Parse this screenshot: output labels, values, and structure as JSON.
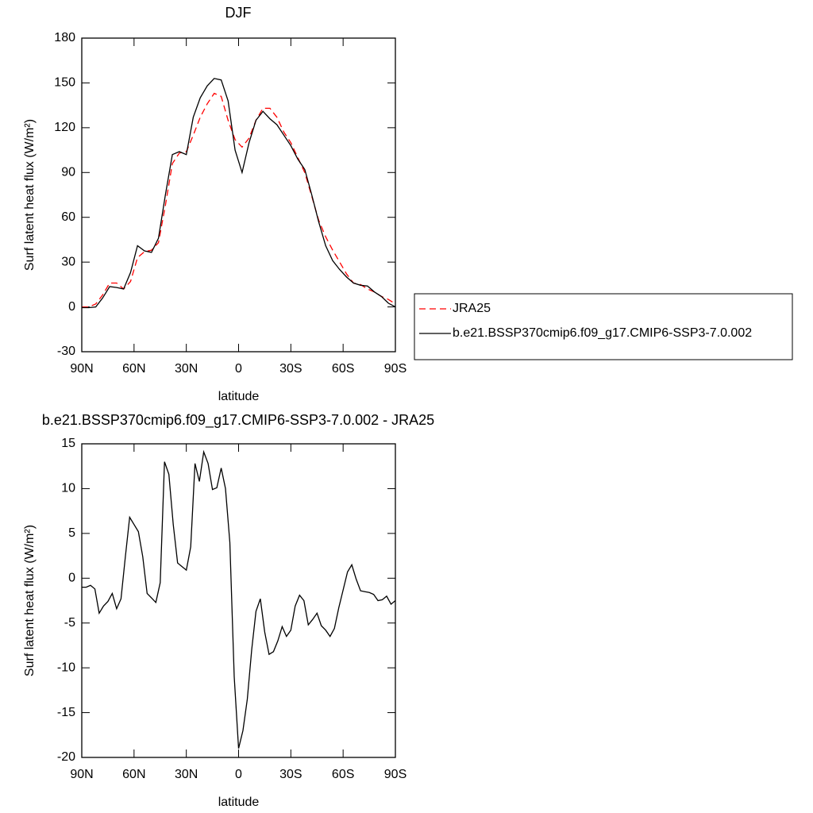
{
  "chart_data": [
    {
      "type": "line",
      "title": "DJF",
      "xlabel": "latitude",
      "ylabel": "Surf latent heat flux (W/m²)",
      "x": [
        90,
        86,
        82,
        78,
        74,
        70,
        66,
        62,
        58,
        54,
        50,
        46,
        42,
        38,
        34,
        30,
        26,
        22,
        18,
        14,
        10,
        6,
        2,
        -2,
        -6,
        -10,
        -14,
        -18,
        -22,
        -26,
        -30,
        -34,
        -38,
        -42,
        -46,
        -50,
        -54,
        -58,
        -62,
        -66,
        -70,
        -74,
        -78,
        -82,
        -86,
        -90
      ],
      "series": [
        {
          "name": "JRA25",
          "color": "#ff0000",
          "linestyle": "dashed",
          "values": [
            0,
            0,
            2,
            8,
            16,
            16,
            12,
            17,
            33,
            37,
            38,
            43,
            68,
            96,
            103,
            104,
            115,
            127,
            136,
            143,
            141,
            125,
            112,
            107,
            113,
            125,
            133,
            133,
            127,
            117,
            110,
            100,
            90,
            74,
            58,
            47,
            38,
            30,
            22,
            16,
            15,
            12,
            10,
            7,
            5,
            2
          ]
        },
        {
          "name": "b.e21.BSSP370cmip6.f09_g17.CMIP6-SSP3-7.0.002",
          "color": "#000000",
          "linestyle": "solid",
          "values": [
            -0.5,
            -0.5,
            0,
            6,
            13.6,
            13,
            12,
            23,
            41,
            37.5,
            36.5,
            46,
            75,
            102,
            104,
            102,
            127,
            140,
            148,
            153,
            152,
            138,
            105,
            90,
            110,
            125,
            131,
            126,
            122,
            115,
            108,
            99,
            92,
            75,
            57,
            41,
            31,
            25,
            20,
            16,
            14.5,
            14,
            10,
            7,
            2.5,
            0
          ]
        }
      ],
      "xlim": [
        90,
        -90
      ],
      "xticks": [
        {
          "value": 90,
          "label": "90N"
        },
        {
          "value": 60,
          "label": "60N"
        },
        {
          "value": 30,
          "label": "30N"
        },
        0,
        {
          "value": -30,
          "label": "30S"
        },
        {
          "value": -60,
          "label": "60S"
        },
        {
          "value": -90,
          "label": "90S"
        }
      ],
      "ylim": [
        -30,
        180
      ],
      "yticks": [
        -30,
        0,
        30,
        60,
        90,
        120,
        150,
        180
      ],
      "legend": "right"
    },
    {
      "type": "line",
      "title": "b.e21.BSSP370cmip6.f09_g17.CMIP6-SSP3-7.0.002 - JRA25",
      "xlabel": "latitude",
      "ylabel": "Surf latent heat flux (W/m²)",
      "x": [
        90,
        87.5,
        85,
        82.5,
        80,
        77.5,
        75,
        72.5,
        70,
        67.5,
        65,
        62.5,
        60,
        57.5,
        55,
        52.5,
        50,
        47.5,
        45,
        42.5,
        40,
        37.5,
        35,
        32.5,
        30,
        27.5,
        25,
        22.5,
        20,
        17.5,
        15,
        12.5,
        10,
        7.5,
        5,
        2.5,
        0,
        -2.5,
        -5,
        -7.5,
        -10,
        -12.5,
        -15,
        -17.5,
        -20,
        -22.5,
        -25,
        -27.5,
        -30,
        -32.5,
        -35,
        -37.5,
        -40,
        -42.5,
        -45,
        -47.5,
        -50,
        -52.5,
        -55,
        -57.5,
        -60,
        -62.5,
        -65,
        -67.5,
        -70,
        -72.5,
        -75,
        -77.5,
        -80,
        -82.5,
        -85,
        -87.5,
        -90
      ],
      "series": [
        {
          "color": "#000000",
          "linestyle": "solid",
          "values": [
            -1,
            -1,
            -0.8,
            -1.2,
            -3.9,
            -3.1,
            -2.6,
            -1.7,
            -3.4,
            -2.3,
            2.4,
            6.8,
            6,
            5.2,
            2.4,
            -1.7,
            -2.2,
            -2.7,
            -0.5,
            13,
            11.6,
            6,
            1.7,
            1.3,
            0.9,
            3.5,
            12.8,
            10.8,
            14.1,
            12.8,
            9.9,
            10.1,
            12.3,
            10,
            4,
            -11,
            -19,
            -17,
            -13.5,
            -8,
            -3.7,
            -2.3,
            -6,
            -8.5,
            -8.2,
            -7,
            -5.4,
            -6.5,
            -5.8,
            -3.1,
            -1.9,
            -2.5,
            -5.2,
            -4.6,
            -3.9,
            -5.3,
            -5.8,
            -6.5,
            -5.6,
            -3.3,
            -1.3,
            0.7,
            1.5,
            -0.1,
            -1.4,
            -1.5,
            -1.6,
            -1.8,
            -2.5,
            -2.4,
            -2,
            -2.9,
            -2.5
          ]
        }
      ],
      "xlim": [
        90,
        -90
      ],
      "xticks": [
        {
          "value": 90,
          "label": "90N"
        },
        {
          "value": 60,
          "label": "60N"
        },
        {
          "value": 30,
          "label": "30N"
        },
        0,
        {
          "value": -30,
          "label": "30S"
        },
        {
          "value": -60,
          "label": "60S"
        },
        {
          "value": -90,
          "label": "90S"
        }
      ],
      "ylim": [
        -20,
        15
      ],
      "yticks": [
        -20,
        -15,
        -10,
        -5,
        0,
        5,
        10,
        15
      ]
    }
  ]
}
